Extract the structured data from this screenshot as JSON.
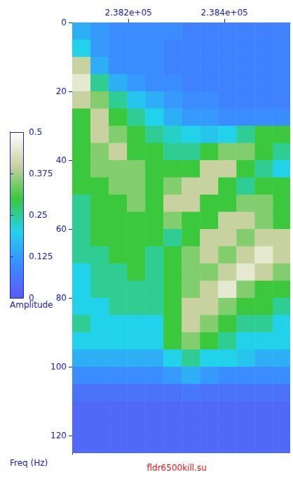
{
  "chart_data": {
    "type": "heatmap",
    "title": "fldr6500kill.su",
    "y_label": "Freq (Hz)",
    "colorbar_label": "Amplitude",
    "xlim": [
      238083,
      238537
    ],
    "xticks": [
      {
        "value": 238200,
        "label": "2.382e+05"
      },
      {
        "value": 238400,
        "label": "2.384e+05"
      }
    ],
    "ylim": [
      0,
      125.5
    ],
    "yticks": [
      0,
      20,
      40,
      60,
      80,
      100,
      120
    ],
    "colorbar_range": [
      0,
      0.5
    ],
    "colorbar_ticks": [
      0,
      0.125,
      0.25,
      0.375,
      0.5
    ],
    "x": [
      238102,
      238140,
      238178,
      238216,
      238254,
      238292,
      238330,
      238368,
      238406,
      238444,
      238482,
      238520
    ],
    "y": [
      2.5,
      7.5,
      12.5,
      17.5,
      22.5,
      27.5,
      32.5,
      37.5,
      42.5,
      47.5,
      52.5,
      57.5,
      62.5,
      67.5,
      72.5,
      77.5,
      82.5,
      87.5,
      92.5,
      97.5,
      102.5,
      107.5,
      112.5,
      117.5,
      122.5
    ],
    "z": [
      [
        0.15,
        0.12,
        0.1,
        0.1,
        0.1,
        0.1,
        0.08,
        0.08,
        0.08,
        0.08,
        0.08,
        0.08
      ],
      [
        0.2,
        0.12,
        0.1,
        0.1,
        0.1,
        0.08,
        0.08,
        0.08,
        0.08,
        0.08,
        0.08,
        0.08
      ],
      [
        0.4,
        0.15,
        0.1,
        0.1,
        0.1,
        0.08,
        0.08,
        0.08,
        0.08,
        0.08,
        0.08,
        0.08
      ],
      [
        0.45,
        0.25,
        0.15,
        0.12,
        0.1,
        0.1,
        0.08,
        0.08,
        0.08,
        0.08,
        0.08,
        0.08
      ],
      [
        0.4,
        0.35,
        0.25,
        0.18,
        0.15,
        0.12,
        0.1,
        0.1,
        0.08,
        0.08,
        0.08,
        0.08
      ],
      [
        0.3,
        0.4,
        0.3,
        0.25,
        0.2,
        0.15,
        0.12,
        0.12,
        0.1,
        0.1,
        0.1,
        0.1
      ],
      [
        0.3,
        0.4,
        0.35,
        0.3,
        0.25,
        0.22,
        0.2,
        0.18,
        0.2,
        0.25,
        0.3,
        0.3
      ],
      [
        0.3,
        0.35,
        0.4,
        0.3,
        0.3,
        0.25,
        0.25,
        0.3,
        0.35,
        0.35,
        0.3,
        0.25
      ],
      [
        0.3,
        0.35,
        0.35,
        0.35,
        0.3,
        0.3,
        0.3,
        0.4,
        0.4,
        0.3,
        0.25,
        0.2
      ],
      [
        0.3,
        0.3,
        0.35,
        0.35,
        0.3,
        0.35,
        0.4,
        0.4,
        0.3,
        0.25,
        0.3,
        0.3
      ],
      [
        0.25,
        0.3,
        0.3,
        0.35,
        0.3,
        0.4,
        0.4,
        0.3,
        0.3,
        0.35,
        0.35,
        0.3
      ],
      [
        0.25,
        0.3,
        0.3,
        0.3,
        0.3,
        0.35,
        0.3,
        0.3,
        0.4,
        0.4,
        0.35,
        0.3
      ],
      [
        0.25,
        0.3,
        0.3,
        0.3,
        0.3,
        0.25,
        0.3,
        0.4,
        0.4,
        0.35,
        0.4,
        0.4
      ],
      [
        0.25,
        0.25,
        0.3,
        0.3,
        0.25,
        0.3,
        0.35,
        0.4,
        0.35,
        0.4,
        0.45,
        0.4
      ],
      [
        0.2,
        0.25,
        0.25,
        0.3,
        0.25,
        0.3,
        0.35,
        0.35,
        0.4,
        0.45,
        0.4,
        0.35
      ],
      [
        0.2,
        0.25,
        0.25,
        0.25,
        0.25,
        0.3,
        0.35,
        0.4,
        0.45,
        0.35,
        0.3,
        0.3
      ],
      [
        0.2,
        0.2,
        0.25,
        0.25,
        0.25,
        0.3,
        0.4,
        0.4,
        0.35,
        0.3,
        0.3,
        0.25
      ],
      [
        0.25,
        0.2,
        0.2,
        0.2,
        0.2,
        0.3,
        0.4,
        0.35,
        0.3,
        0.25,
        0.25,
        0.2
      ],
      [
        0.2,
        0.2,
        0.2,
        0.2,
        0.2,
        0.3,
        0.35,
        0.3,
        0.25,
        0.2,
        0.2,
        0.2
      ],
      [
        0.15,
        0.15,
        0.15,
        0.15,
        0.15,
        0.2,
        0.25,
        0.2,
        0.2,
        0.18,
        0.15,
        0.15
      ],
      [
        0.1,
        0.1,
        0.1,
        0.1,
        0.1,
        0.12,
        0.15,
        0.12,
        0.1,
        0.1,
        0.1,
        0.1
      ],
      [
        0.05,
        0.05,
        0.05,
        0.05,
        0.05,
        0.05,
        0.06,
        0.05,
        0.05,
        0.05,
        0.05,
        0.05
      ],
      [
        0.03,
        0.03,
        0.03,
        0.03,
        0.03,
        0.03,
        0.03,
        0.03,
        0.03,
        0.03,
        0.03,
        0.03
      ],
      [
        0.03,
        0.03,
        0.03,
        0.03,
        0.03,
        0.03,
        0.03,
        0.03,
        0.03,
        0.03,
        0.03,
        0.03
      ],
      [
        0.03,
        0.03,
        0.03,
        0.03,
        0.03,
        0.03,
        0.03,
        0.03,
        0.03,
        0.03,
        0.03,
        0.03
      ]
    ]
  }
}
